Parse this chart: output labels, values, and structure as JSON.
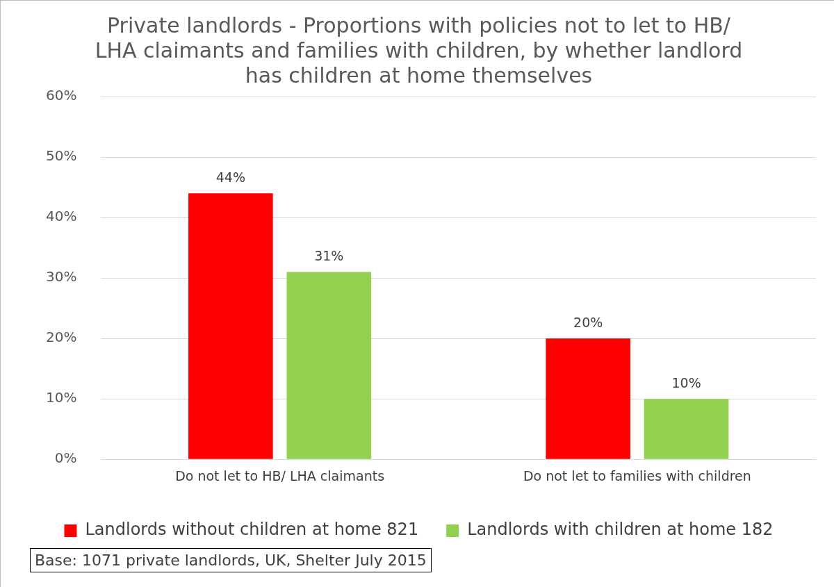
{
  "chart_data": {
    "type": "bar",
    "title": "Private landlords - Proportions with policies not to let to HB/ LHA claimants and families with children, by whether landlord has children at home themselves",
    "categories": [
      "Do not let to HB/ LHA claimants",
      "Do not let to families with children"
    ],
    "series": [
      {
        "name": "Landlords without children at home 821",
        "color": "#ff0000",
        "values": [
          44,
          20
        ],
        "value_labels": [
          "44%",
          "20%"
        ]
      },
      {
        "name": "Landlords with children at home 182",
        "color": "#92d050",
        "values": [
          31,
          10
        ],
        "value_labels": [
          "31%",
          "10%"
        ]
      }
    ],
    "ylim": [
      0,
      60
    ],
    "yticks": [
      {
        "value": 0,
        "label": "0%"
      },
      {
        "value": 10,
        "label": "10%"
      },
      {
        "value": 20,
        "label": "20%"
      },
      {
        "value": 30,
        "label": "30%"
      },
      {
        "value": 40,
        "label": "40%"
      },
      {
        "value": 50,
        "label": "50%"
      },
      {
        "value": 60,
        "label": "60%"
      }
    ],
    "grid": "y",
    "legend": "bottom",
    "annotations": [
      "Base: 1071 private landlords, UK, Shelter July 2015"
    ]
  }
}
